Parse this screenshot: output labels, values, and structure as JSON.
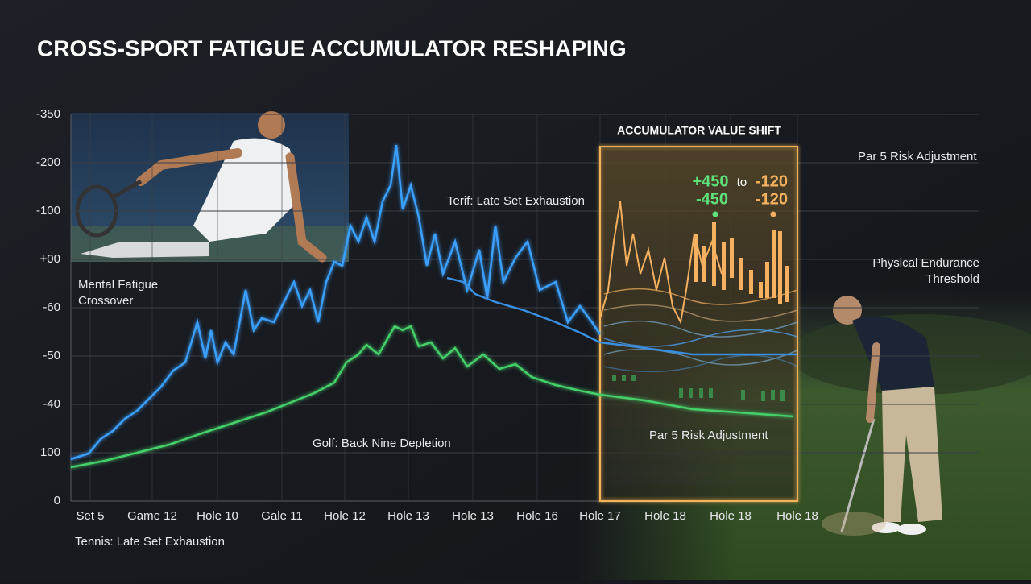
{
  "header": {
    "title": "CROSS-SPORT FATIGUE ACCUMULATOR RESHAPING"
  },
  "y_axis_labels": [
    "-350",
    "-200",
    "-100",
    "+00",
    "-60",
    "-50",
    "-40",
    "100",
    "0"
  ],
  "x_axis_labels": [
    "Set 5",
    "Game 12",
    "Hole 10",
    "Gale 11",
    "Hole 12",
    "Hole 13",
    "Hole 13",
    "Hole 16",
    "Hole 17",
    "Hole 18",
    "Hole 18",
    "Hole 18"
  ],
  "annotations": {
    "tennis_peak": "Terif: Late Set Exhaustion",
    "mental_fatigue": [
      "Mental Fatigue",
      "Crossover"
    ],
    "golf_line": "Golf: Back Nine Depletion",
    "par5_lower": "Par 5 Risk Adjustment",
    "par5_upper": "Par 5 Risk Adjustment",
    "endurance": [
      "Physical Endurance",
      "Threshold"
    ],
    "tennis_legend": "Tennis: Late Set Exhaustion"
  },
  "shift_panel": {
    "title": "ACCUMULATOR VALUE SHIFT",
    "from_top": "+450",
    "joiner": "to",
    "to_top": "-120",
    "from_bottom": "-450",
    "to_bottom": "-120"
  }
}
